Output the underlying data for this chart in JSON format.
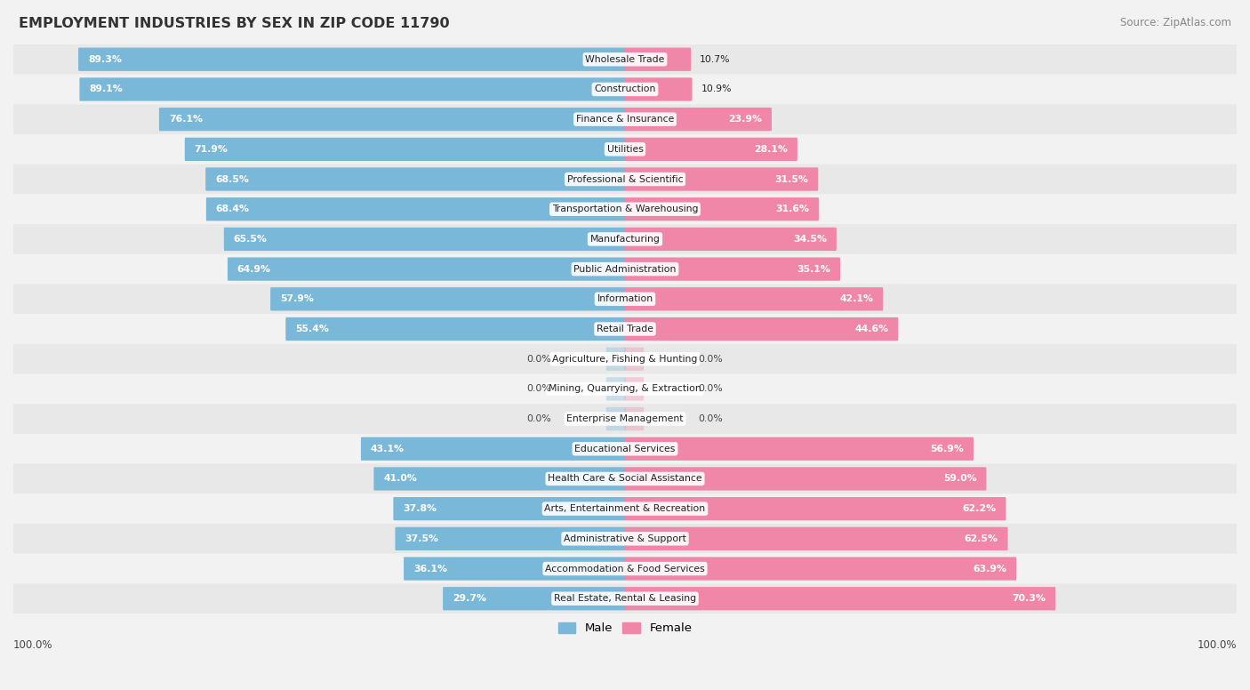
{
  "title": "EMPLOYMENT INDUSTRIES BY SEX IN ZIP CODE 11790",
  "source": "Source: ZipAtlas.com",
  "male_color": "#7ab8d9",
  "female_color": "#f087a8",
  "bg_color": "#f2f2f2",
  "row_color_even": "#e8e8e8",
  "row_color_odd": "#f2f2f2",
  "categories": [
    "Wholesale Trade",
    "Construction",
    "Finance & Insurance",
    "Utilities",
    "Professional & Scientific",
    "Transportation & Warehousing",
    "Manufacturing",
    "Public Administration",
    "Information",
    "Retail Trade",
    "Agriculture, Fishing & Hunting",
    "Mining, Quarrying, & Extraction",
    "Enterprise Management",
    "Educational Services",
    "Health Care & Social Assistance",
    "Arts, Entertainment & Recreation",
    "Administrative & Support",
    "Accommodation & Food Services",
    "Real Estate, Rental & Leasing"
  ],
  "male_pct": [
    89.3,
    89.1,
    76.1,
    71.9,
    68.5,
    68.4,
    65.5,
    64.9,
    57.9,
    55.4,
    0.0,
    0.0,
    0.0,
    43.1,
    41.0,
    37.8,
    37.5,
    36.1,
    29.7
  ],
  "female_pct": [
    10.7,
    10.9,
    23.9,
    28.1,
    31.5,
    31.6,
    34.5,
    35.1,
    42.1,
    44.6,
    0.0,
    0.0,
    0.0,
    56.9,
    59.0,
    62.2,
    62.5,
    63.9,
    70.3
  ]
}
